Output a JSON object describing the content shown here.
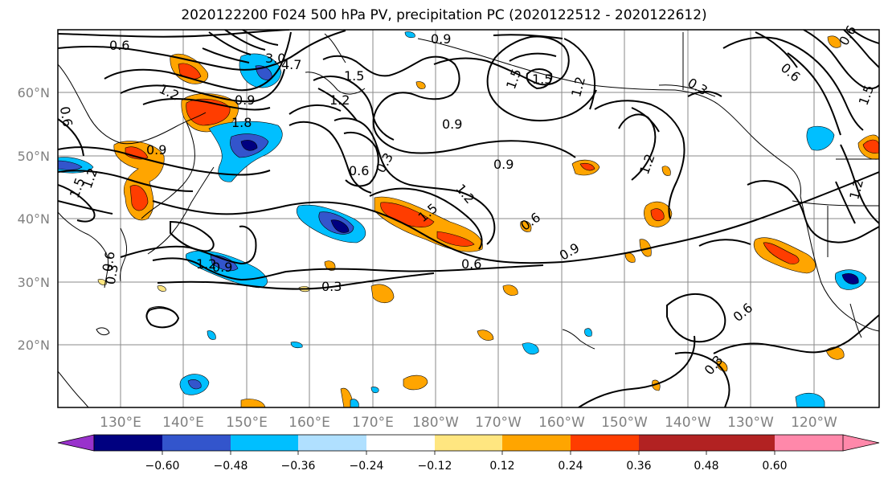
{
  "title": "2020122200 F024 500 hPa PV, precipitation PC (2020122512 - 2020122612)",
  "lat_labels": [
    "60°N",
    "50°N",
    "40°N",
    "30°N",
    "20°N"
  ],
  "lon_labels": [
    "130°E",
    "140°E",
    "150°E",
    "160°E",
    "170°E",
    "180°W",
    "170°W",
    "160°W",
    "150°W",
    "140°W",
    "130°W",
    "120°W"
  ],
  "colorbar": {
    "ticks": [
      "−0.60",
      "−0.48",
      "−0.36",
      "−0.24",
      "−0.12",
      "0.12",
      "0.24",
      "0.36",
      "0.48",
      "0.60"
    ],
    "colors": [
      "#9932cc",
      "#000080",
      "#3355cc",
      "#00bfff",
      "#b0e0ff",
      "#ffffff",
      "#ffe680",
      "#ffa500",
      "#ff3d00",
      "#b22222",
      "#ff88aa"
    ]
  },
  "contour_labels": [
    "0.6",
    "0.6",
    "0.9",
    "1.2",
    "1.5",
    "3.0",
    "4.7",
    "0.9",
    "1.8",
    "1.2",
    "1.5",
    "0.9",
    "0.9",
    "0.3",
    "0.6",
    "0.9",
    "1.2",
    "1.5",
    "1.5",
    "1.2",
    "1.2",
    "0.6",
    "0.9",
    "0.6",
    "0.3",
    "0.6",
    "0.3",
    "1.2",
    "0.9",
    "0.3",
    "0.6",
    "0.3",
    "0.6",
    "0.6",
    "1.5",
    "1.2",
    "1.5",
    "1.2"
  ]
}
